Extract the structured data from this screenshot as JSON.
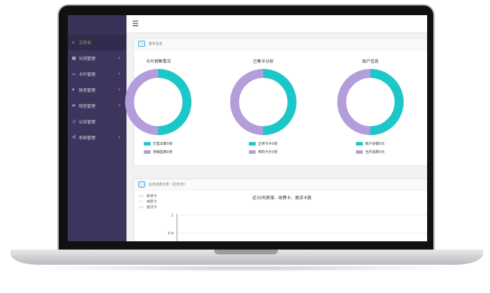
{
  "sidebar": {
    "items": [
      {
        "label": "工作台",
        "icon": "home-icon",
        "active": true
      },
      {
        "label": "分润管理",
        "icon": "chart-icon",
        "expandable": true
      },
      {
        "label": "卡片管理",
        "icon": "card-icon",
        "expandable": true
      },
      {
        "label": "财务管理",
        "icon": "yen-icon",
        "expandable": true
      },
      {
        "label": "短信管理",
        "icon": "mail-icon",
        "expandable": true
      },
      {
        "label": "公告管理",
        "icon": "bell-icon",
        "expandable": false
      },
      {
        "label": "系统管理",
        "icon": "share-icon",
        "expandable": true
      }
    ]
  },
  "basic_panel": {
    "title": "基本信息",
    "charts": [
      {
        "title": "卡片销售情况",
        "legend": [
          "已售出数0张",
          "待销售数0张"
        ]
      },
      {
        "title": "已售卡分析",
        "legend": [
          "正常卡片0张",
          "停机卡片0张"
        ]
      },
      {
        "title": "账户信息",
        "legend": [
          "账户余额0元",
          "当月消费0元"
        ]
      }
    ]
  },
  "colors": {
    "teal": "#1cc7c9",
    "purple": "#b39ddb",
    "sidebar": "#3e355e",
    "active": "#8bc34a"
  },
  "trend_panel": {
    "title": "业务动态分析（近30天）",
    "chart_data": {
      "type": "line",
      "title": "近30天新增、续费卡、激活卡数",
      "series": [
        {
          "name": "新增卡",
          "color": "#5ab1ef"
        },
        {
          "name": "续费卡",
          "color": "#ffb980"
        },
        {
          "name": "激活卡",
          "color": "#d87a80"
        }
      ],
      "y_ticks": [
        "1",
        "0.8"
      ]
    }
  }
}
